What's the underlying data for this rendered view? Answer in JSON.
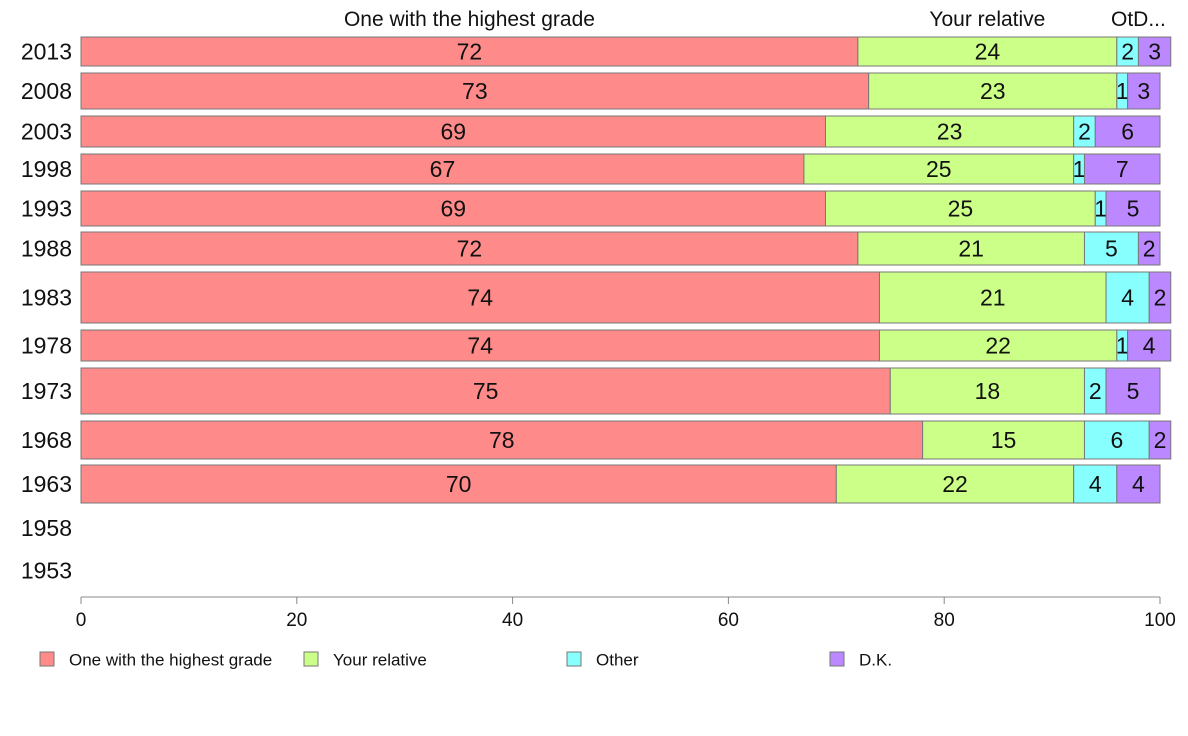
{
  "chart_data": {
    "type": "bar",
    "orientation": "horizontal",
    "stacked": true,
    "percent": true,
    "xlim": [
      0,
      100
    ],
    "xticks": [
      0,
      20,
      40,
      60,
      80,
      100
    ],
    "grid": false,
    "legend_position": "bottom",
    "top_labels": [
      "One with the highest grade",
      "Your relative",
      "OtD..."
    ],
    "categories": [
      "2013",
      "2008",
      "2003",
      "1998",
      "1993",
      "1988",
      "1983",
      "1978",
      "1973",
      "1968",
      "1963",
      "1958",
      "1953"
    ],
    "series": [
      {
        "name": "One with the highest grade",
        "color": "#ff8a8a",
        "values": [
          72,
          73,
          69,
          67,
          69,
          72,
          74,
          74,
          75,
          78,
          70,
          null,
          null
        ]
      },
      {
        "name": "Your relative",
        "color": "#ccff88",
        "values": [
          24,
          23,
          23,
          25,
          25,
          21,
          21,
          22,
          18,
          15,
          22,
          null,
          null
        ]
      },
      {
        "name": "Other",
        "color": "#88ffff",
        "values": [
          2,
          1,
          2,
          1,
          1,
          5,
          4,
          1,
          2,
          6,
          4,
          null,
          null
        ]
      },
      {
        "name": "D.K.",
        "color": "#bb88ff",
        "values": [
          3,
          3,
          6,
          7,
          5,
          2,
          2,
          4,
          5,
          2,
          4,
          null,
          null
        ]
      }
    ]
  }
}
